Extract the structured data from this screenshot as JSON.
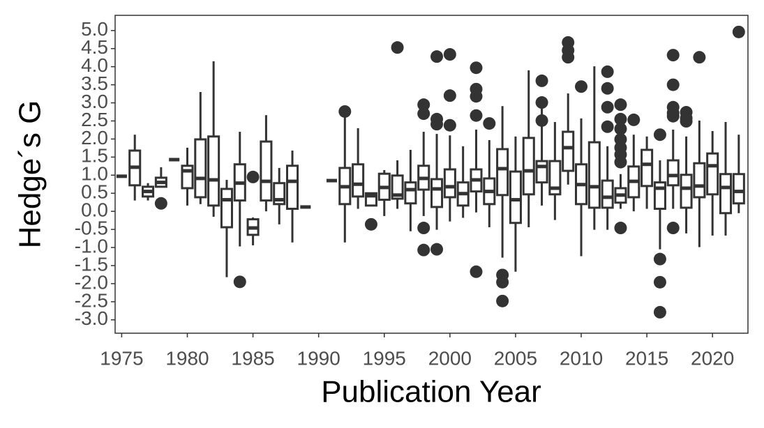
{
  "chart_data": {
    "type": "box",
    "x_label": "Publication Year",
    "y_label": "Hedge´s G",
    "color": "#333333",
    "fill": "#ffffff",
    "grid": false,
    "xlim": [
      1974.5,
      2022.7
    ],
    "ylim": [
      -3.37,
      5.42
    ],
    "xticks": [
      1975,
      1980,
      1985,
      1990,
      1995,
      2000,
      2005,
      2010,
      2015,
      2020
    ],
    "yticks": [
      {
        "value": -3,
        "label": "-3.0"
      },
      {
        "value": -2.5,
        "label": "-2.5"
      },
      {
        "value": -2,
        "label": "-2.0"
      },
      {
        "value": -1.5,
        "label": "-1.5"
      },
      {
        "value": -1,
        "label": "-1.0"
      },
      {
        "value": -0.5,
        "label": "-0.5"
      },
      {
        "value": 0,
        "label": "0.0"
      },
      {
        "value": 0.5,
        "label": "0.5"
      },
      {
        "value": 1,
        "label": "1.0"
      },
      {
        "value": 1.5,
        "label": "1.5"
      },
      {
        "value": 2,
        "label": "2.0"
      },
      {
        "value": 2.5,
        "label": "2.5"
      },
      {
        "value": 3,
        "label": "3.0"
      },
      {
        "value": 3.5,
        "label": "3.5"
      },
      {
        "value": 4,
        "label": "4.0"
      },
      {
        "value": 4.5,
        "label": "4.5"
      },
      {
        "value": 5,
        "label": "5.0"
      }
    ],
    "x": [
      1975,
      1976,
      1977,
      1978,
      1979,
      1980,
      1981,
      1982,
      1983,
      1984,
      1985,
      1986,
      1987,
      1988,
      1989,
      1991,
      1992,
      1993,
      1994,
      1995,
      1996,
      1997,
      1998,
      1999,
      2000,
      2001,
      2002,
      2003,
      2004,
      2005,
      2006,
      2007,
      2008,
      2009,
      2010,
      2011,
      2012,
      2013,
      2014,
      2015,
      2016,
      2017,
      2018,
      2019,
      2020,
      2021,
      2022
    ],
    "whislo": [
      0.97,
      0.3,
      0.3,
      0.68,
      1.43,
      0.16,
      0.2,
      -0.15,
      -1.82,
      -0.97,
      -0.94,
      0.0,
      -0.36,
      -0.86,
      0.12,
      0.85,
      -0.86,
      0.07,
      0.16,
      -0.13,
      0.07,
      -0.55,
      -0.13,
      -0.51,
      -0.28,
      -0.18,
      -0.03,
      -0.44,
      -1.28,
      -1.67,
      -0.44,
      0.16,
      -0.24,
      0.74,
      -1.24,
      -0.51,
      -0.51,
      0.07,
      0.0,
      0.07,
      -1.05,
      0.07,
      -0.61,
      -0.99,
      -0.67,
      -0.67,
      -0.05
    ],
    "q1": [
      0.97,
      0.72,
      0.41,
      0.68,
      1.43,
      0.64,
      0.39,
      0.16,
      -0.44,
      0.3,
      -0.65,
      0.3,
      0.2,
      0.07,
      0.12,
      0.85,
      0.2,
      0.41,
      0.16,
      0.32,
      0.35,
      0.22,
      0.6,
      0.12,
      0.39,
      0.16,
      0.55,
      0.2,
      0.45,
      -0.32,
      0.47,
      0.8,
      0.47,
      1.12,
      0.2,
      0.1,
      0.1,
      0.24,
      0.39,
      0.7,
      0.07,
      0.72,
      0.1,
      0.39,
      0.47,
      -0.05,
      0.22
    ],
    "median": [
      0.97,
      1.22,
      0.55,
      0.8,
      1.43,
      1.12,
      0.91,
      0.87,
      0.32,
      0.78,
      -0.46,
      0.83,
      0.32,
      0.83,
      0.12,
      0.85,
      0.68,
      0.75,
      0.43,
      0.66,
      0.45,
      0.6,
      0.91,
      0.62,
      0.68,
      0.49,
      0.87,
      0.55,
      1.18,
      0.32,
      1.12,
      1.24,
      0.64,
      1.76,
      0.74,
      0.68,
      0.39,
      0.45,
      0.83,
      1.3,
      0.64,
      0.99,
      0.64,
      0.7,
      1.26,
      0.66,
      0.55
    ],
    "q3": [
      0.97,
      1.68,
      0.68,
      0.93,
      1.43,
      1.26,
      1.99,
      2.07,
      0.62,
      1.3,
      -0.22,
      1.93,
      0.78,
      1.26,
      0.12,
      0.85,
      1.2,
      1.3,
      0.5,
      1.04,
      0.99,
      0.8,
      1.26,
      0.89,
      1.16,
      0.8,
      1.16,
      0.91,
      1.72,
      1.1,
      2.03,
      1.39,
      1.39,
      2.2,
      1.3,
      1.91,
      0.85,
      0.64,
      1.24,
      1.7,
      0.8,
      1.41,
      1.01,
      1.33,
      1.6,
      1.03,
      1.03
    ],
    "whishi": [
      0.97,
      2.12,
      0.78,
      1.22,
      1.43,
      1.76,
      3.3,
      4.15,
      0.87,
      2.2,
      -0.17,
      2.66,
      1.2,
      1.68,
      0.12,
      0.85,
      2.66,
      2.3,
      0.5,
      1.14,
      1.41,
      1.7,
      2.2,
      2.14,
      2.1,
      1.8,
      2.26,
      1.97,
      2.91,
      2.07,
      3.9,
      3.14,
      2.47,
      3.26,
      2.57,
      4.01,
      1.8,
      1.03,
      2.12,
      2.07,
      1.41,
      2.26,
      2.07,
      2.51,
      2.22,
      2.47,
      2.12
    ],
    "outliers": [
      [],
      [],
      [],
      [
        0.22
      ],
      [],
      [],
      [],
      [],
      [],
      [
        -1.95
      ],
      [
        0.95
      ],
      [],
      [],
      [],
      [],
      [],
      [
        2.76
      ],
      [],
      [
        -0.36
      ],
      [],
      [
        4.53
      ],
      [],
      [
        2.95,
        2.7,
        -0.46,
        -1.07
      ],
      [
        4.28,
        2.55,
        2.41,
        -1.05
      ],
      [
        4.34,
        3.2,
        2.38
      ],
      [],
      [
        3.97,
        3.38,
        3.18,
        2.65,
        -1.67
      ],
      [
        2.43
      ],
      [
        -1.76,
        -1.96,
        -2.48
      ],
      [],
      [],
      [
        3.61,
        3.01,
        2.51
      ],
      [],
      [
        4.67,
        4.45,
        4.26
      ],
      [
        3.45
      ],
      [],
      [
        3.86,
        3.4,
        2.88,
        2.34
      ],
      [
        2.95,
        2.55,
        2.28,
        1.99,
        1.76,
        1.57,
        1.36,
        -0.46
      ],
      [
        2.53
      ],
      [],
      [
        2.12,
        -1.32,
        -1.96,
        -2.79
      ],
      [
        4.32,
        3.5,
        2.88,
        2.72,
        2.63,
        -0.46
      ],
      [
        2.74,
        2.58,
        2.49
      ],
      [
        4.26
      ],
      [],
      [],
      [
        4.96
      ]
    ]
  }
}
